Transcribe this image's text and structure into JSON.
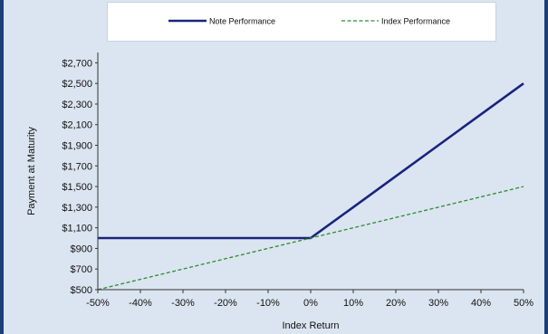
{
  "chart_data": {
    "type": "line",
    "title": "",
    "xlabel": "Index Return",
    "ylabel": "Payment at Maturity",
    "x": [
      -50,
      -40,
      -30,
      -20,
      -10,
      0,
      10,
      20,
      30,
      40,
      50
    ],
    "x_tick_labels": [
      "-50%",
      "-40%",
      "-30%",
      "-20%",
      "-10%",
      "0%",
      "10%",
      "20%",
      "30%",
      "40%",
      "50%"
    ],
    "xlim": [
      -50,
      50
    ],
    "y_ticks": [
      500,
      700,
      900,
      1100,
      1300,
      1500,
      1700,
      1900,
      2100,
      2300,
      2500,
      2700
    ],
    "y_tick_labels": [
      "$500",
      "$700",
      "$900",
      "$1,100",
      "$1,300",
      "$1,500",
      "$1,700",
      "$1,900",
      "$2,100",
      "$2,300",
      "$2,500",
      "$2,700"
    ],
    "ylim": [
      500,
      2800
    ],
    "grid": false,
    "legend_position": "top",
    "series": [
      {
        "name": "Note Performance",
        "color": "#1a237e",
        "style": "solid",
        "values": [
          1000,
          1000,
          1000,
          1000,
          1000,
          1000,
          1300,
          1600,
          1900,
          2200,
          2500
        ]
      },
      {
        "name": "Index Performance",
        "color": "#2e8b2e",
        "style": "dashed",
        "values": [
          500,
          600,
          700,
          800,
          900,
          1000,
          1100,
          1200,
          1300,
          1400,
          1500
        ]
      }
    ]
  }
}
